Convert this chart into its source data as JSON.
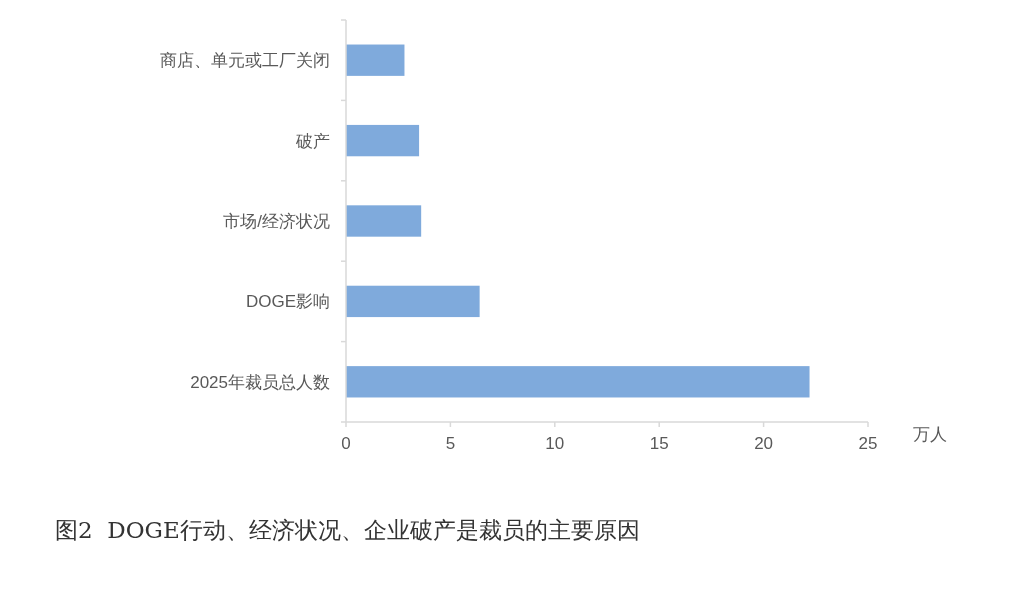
{
  "chart_data": {
    "type": "bar",
    "orientation": "horizontal",
    "title": "图2  DOGE行动、经济状况、企业破产是裁员的主要原因",
    "xlabel": "万人",
    "categories": [
      "商店、单元或工厂关闭",
      "破产",
      "市场/经济状况",
      "DOGE影响",
      "2025年裁员总人数"
    ],
    "values": [
      2.8,
      3.5,
      3.6,
      6.4,
      22.2
    ],
    "color": "#7faadc",
    "xlim": [
      0,
      25
    ],
    "xticks": [
      0,
      5,
      10,
      15,
      20,
      25
    ],
    "grid": false,
    "legend": false
  }
}
